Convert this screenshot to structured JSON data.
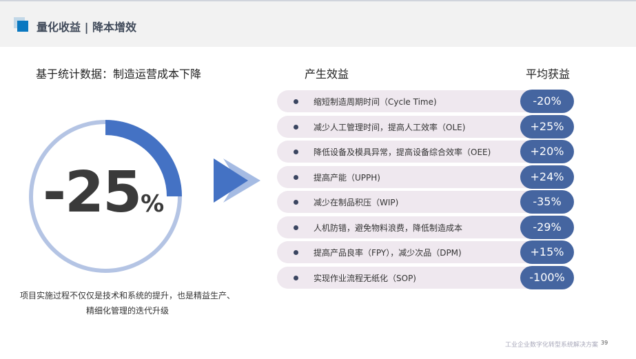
{
  "header": {
    "title": "量化收益 | 降本增效"
  },
  "left": {
    "subtitle": "基于统计数据：制造运营成本下降",
    "value": "-25",
    "unit": "%",
    "fraction": 0.25,
    "note_line1": "项目实施过程不仅仅是技术和系统的提升，也是精益生产、",
    "note_line2": "精细化管理的迭代升级"
  },
  "table": {
    "col_effect": "产生效益",
    "col_gain": "平均获益",
    "rows": [
      {
        "effect": "缩短制造周期时间（Cycle Time)",
        "gain": "-20%"
      },
      {
        "effect": "减少人工管理时间，提高人工效率（OLE)",
        "gain": "+25%"
      },
      {
        "effect": "降低设备及模具异常，提高设备综合效率（OEE)",
        "gain": "+20%"
      },
      {
        "effect": "提高产能（UPPH)",
        "gain": "+24%"
      },
      {
        "effect": "减少在制品积压（WIP)",
        "gain": "-35%"
      },
      {
        "effect": "人机防错，避免物料浪费，降低制造成本",
        "gain": "-29%"
      },
      {
        "effect": "提高产品良率（FPY），减少次品（DPM)",
        "gain": "+15%"
      },
      {
        "effect": "实现作业流程无纸化（SOP)",
        "gain": "-100%"
      }
    ]
  },
  "footer": {
    "text": "工业企业数字化转型系统解决方案",
    "page": "39"
  },
  "colors": {
    "accent": "#4472c4",
    "badge": "#4565a0",
    "ring": "#b4c4e4",
    "row_bg": "#efe8ef"
  }
}
